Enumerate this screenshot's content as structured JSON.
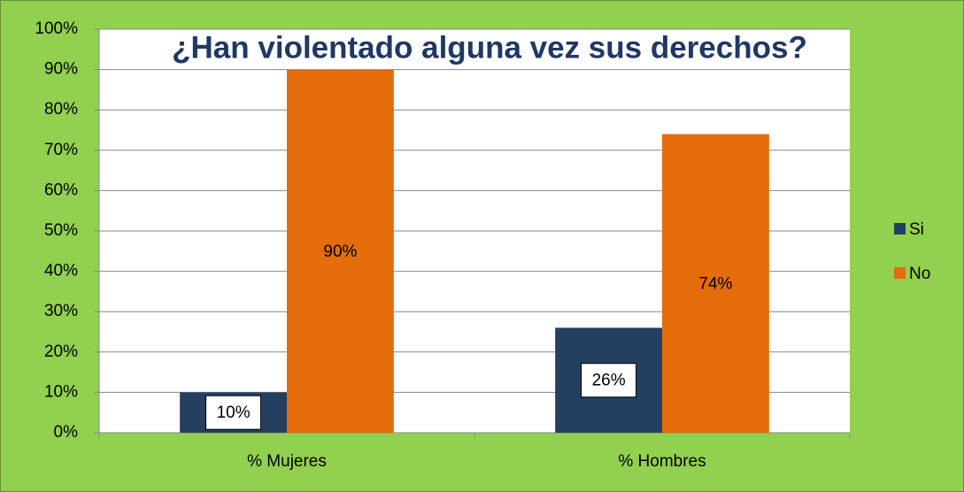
{
  "chart_data": {
    "type": "bar",
    "title": "¿Han violentado alguna vez sus derechos?",
    "categories": [
      "% Mujeres",
      "% Hombres"
    ],
    "series": [
      {
        "name": "Si",
        "color": "#253f61",
        "values": [
          10,
          26
        ],
        "value_labels": [
          "10%",
          "26%"
        ]
      },
      {
        "name": "No",
        "color": "#e46c0a",
        "values": [
          90,
          74
        ],
        "value_labels": [
          "90%",
          "74%"
        ]
      }
    ],
    "ylim": [
      0,
      100
    ],
    "yticks": [
      {
        "value": 0,
        "label": "0%"
      },
      {
        "value": 10,
        "label": "10%"
      },
      {
        "value": 20,
        "label": "20%"
      },
      {
        "value": 30,
        "label": "30%"
      },
      {
        "value": 40,
        "label": "40%"
      },
      {
        "value": 50,
        "label": "50%"
      },
      {
        "value": 60,
        "label": "60%"
      },
      {
        "value": 70,
        "label": "70%"
      },
      {
        "value": 80,
        "label": "80%"
      },
      {
        "value": 90,
        "label": "90%"
      },
      {
        "value": 100,
        "label": "100%"
      }
    ],
    "grid": true,
    "legend": "right"
  }
}
